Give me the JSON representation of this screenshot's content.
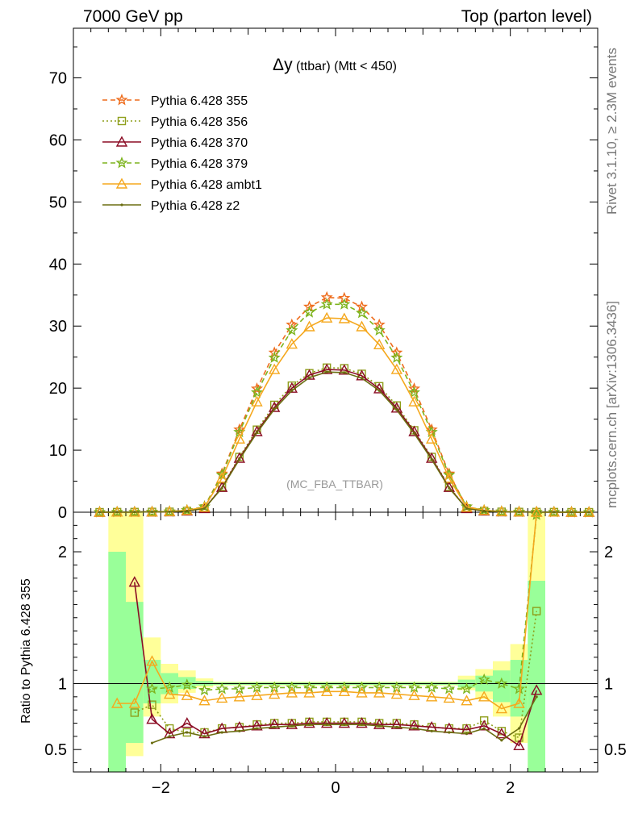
{
  "header": {
    "left": "7000 GeV pp",
    "right": "Top (parton level)"
  },
  "side": {
    "rivet": "Rivet 3.1.10, ≥ 2.3M events",
    "mcplots": "mcplots.cern.ch [arXiv:1306.3436]"
  },
  "chart_data": {
    "type": "line",
    "title_main": "Δy",
    "title_sub": " (ttbar) (Mtt < 450)",
    "watermark": "(MC_FBA_TTBAR)",
    "ylabel_ratio": "Ratio to Pythia 6.428 355",
    "xlim": [
      -3.0,
      3.0
    ],
    "ylim_main": [
      0,
      78
    ],
    "ylim_ratio": [
      0.33,
      2.3
    ],
    "x_ticks": [
      -2,
      0,
      2
    ],
    "y_ticks_main": [
      0,
      10,
      20,
      30,
      40,
      50,
      60,
      70
    ],
    "y_ticks_ratio": [
      0.5,
      1,
      2
    ],
    "x": [
      -2.7,
      -2.5,
      -2.3,
      -2.1,
      -1.9,
      -1.7,
      -1.5,
      -1.3,
      -1.1,
      -0.9,
      -0.7,
      -0.5,
      -0.3,
      -0.1,
      0.1,
      0.3,
      0.5,
      0.7,
      0.9,
      1.1,
      1.3,
      1.5,
      1.7,
      1.9,
      2.1,
      2.3,
      2.5,
      2.7,
      2.9
    ],
    "series": [
      {
        "name": "Pythia 6.428 355",
        "color": "#ee6c1c",
        "dash": "6,4",
        "marker": "star",
        "values": [
          0.0,
          0.02,
          0.03,
          0.05,
          0.1,
          0.3,
          0.9,
          6.2,
          13.3,
          19.9,
          25.7,
          30.2,
          33.1,
          34.6,
          34.5,
          33.1,
          30.2,
          25.7,
          19.9,
          13.3,
          6.2,
          0.9,
          0.3,
          0.1,
          0.05,
          0.03,
          0.02,
          0.0,
          0.0
        ],
        "ratio": [
          null,
          null,
          null,
          null,
          null,
          null,
          null,
          null,
          null,
          null,
          null,
          null,
          null,
          null,
          null,
          null,
          null,
          null,
          null,
          null,
          null,
          null,
          null,
          null,
          null,
          null,
          null,
          null,
          null
        ]
      },
      {
        "name": "Pythia 6.428 356",
        "color": "#8e9e1a",
        "dash": "2,3",
        "marker": "square",
        "values": [
          0.0,
          0.02,
          0.03,
          0.05,
          0.07,
          0.2,
          0.6,
          4.1,
          8.9,
          13.3,
          17.3,
          20.4,
          22.4,
          23.3,
          23.2,
          22.3,
          20.3,
          17.2,
          13.2,
          8.9,
          4.1,
          0.6,
          0.2,
          0.07,
          0.04,
          0.03,
          0.02,
          0.0,
          0.0
        ],
        "ratio": [
          null,
          null,
          0.78,
          0.84,
          0.66,
          0.63,
          0.63,
          0.66,
          0.67,
          0.69,
          0.7,
          0.7,
          0.71,
          0.71,
          0.71,
          0.71,
          0.7,
          0.7,
          0.69,
          0.67,
          0.66,
          0.66,
          0.72,
          0.64,
          0.59,
          1.55,
          null,
          null,
          null
        ]
      },
      {
        "name": "Pythia 6.428 370",
        "color": "#8b0c24",
        "dash": "",
        "marker": "triangle",
        "values": [
          0.0,
          0.02,
          0.03,
          0.05,
          0.07,
          0.2,
          0.6,
          4.0,
          8.7,
          13.0,
          16.9,
          20.0,
          22.1,
          23.0,
          22.9,
          22.0,
          19.9,
          16.8,
          13.0,
          8.7,
          4.0,
          0.6,
          0.2,
          0.07,
          0.04,
          0.03,
          0.02,
          0.0,
          0.0
        ],
        "ratio": [
          null,
          null,
          1.77,
          0.73,
          0.62,
          0.7,
          0.62,
          0.66,
          0.67,
          0.68,
          0.69,
          0.69,
          0.7,
          0.7,
          0.7,
          0.7,
          0.69,
          0.69,
          0.68,
          0.67,
          0.66,
          0.65,
          0.68,
          0.62,
          0.53,
          0.95,
          null,
          null,
          null
        ]
      },
      {
        "name": "Pythia 6.428 379",
        "color": "#7db41e",
        "dash": "6,4",
        "marker": "star",
        "values": [
          0.0,
          0.02,
          0.03,
          0.05,
          0.1,
          0.3,
          0.9,
          6.0,
          12.9,
          19.3,
          24.9,
          29.3,
          32.2,
          33.5,
          33.5,
          32.1,
          29.3,
          24.9,
          19.3,
          12.9,
          6.0,
          0.9,
          0.3,
          0.1,
          0.05,
          0.03,
          0.02,
          0.0,
          0.0
        ],
        "ratio": [
          null,
          null,
          null,
          0.96,
          0.97,
          0.99,
          0.95,
          0.96,
          0.96,
          0.97,
          0.97,
          0.97,
          0.97,
          0.97,
          0.97,
          0.97,
          0.97,
          0.97,
          0.97,
          0.97,
          0.96,
          0.96,
          1.03,
          1.0,
          0.96,
          2.28,
          null,
          null,
          null
        ]
      },
      {
        "name": "Pythia 6.428 ambt1",
        "color": "#f5a81e",
        "dash": "",
        "marker": "triangle",
        "values": [
          0.0,
          0.02,
          0.03,
          0.05,
          0.1,
          0.3,
          0.8,
          5.5,
          11.8,
          17.8,
          23.0,
          27.1,
          29.9,
          31.3,
          31.2,
          29.9,
          27.0,
          23.0,
          17.8,
          11.8,
          5.5,
          0.8,
          0.3,
          0.1,
          0.05,
          0.03,
          0.02,
          0.0,
          0.0
        ],
        "ratio": [
          null,
          0.85,
          0.85,
          1.17,
          0.92,
          0.91,
          0.87,
          0.89,
          0.9,
          0.91,
          0.92,
          0.93,
          0.93,
          0.94,
          0.94,
          0.93,
          0.93,
          0.92,
          0.91,
          0.9,
          0.89,
          0.87,
          0.9,
          0.81,
          0.85,
          2.3,
          null,
          null,
          null
        ]
      },
      {
        "name": "Pythia 6.428 z2",
        "color": "#6b6e12",
        "dash": "",
        "marker": "dot",
        "values": [
          0.0,
          0.02,
          0.03,
          0.05,
          0.07,
          0.2,
          0.6,
          3.9,
          8.5,
          12.8,
          16.6,
          19.6,
          21.7,
          22.6,
          22.5,
          21.6,
          19.6,
          16.5,
          12.7,
          8.5,
          3.9,
          0.6,
          0.2,
          0.07,
          0.04,
          0.03,
          0.02,
          0.0,
          0.0
        ],
        "ratio": [
          null,
          null,
          null,
          0.55,
          0.6,
          0.63,
          0.6,
          0.63,
          0.64,
          0.66,
          0.67,
          0.68,
          0.69,
          0.69,
          0.69,
          0.69,
          0.68,
          0.67,
          0.66,
          0.64,
          0.63,
          0.62,
          0.66,
          0.57,
          0.66,
          0.9,
          null,
          null,
          null
        ]
      }
    ],
    "bands": {
      "note_bins": "bin lower/upper edges",
      "lo": [
        -2.6,
        -2.4,
        -2.2,
        -2.0,
        -1.8,
        -1.6,
        -1.4,
        1.4,
        1.6,
        1.8,
        2.0,
        2.2
      ],
      "hi": [
        -2.4,
        -2.2,
        -2.0,
        -1.8,
        -1.6,
        -1.4,
        1.4,
        1.6,
        1.8,
        2.0,
        2.2,
        2.4
      ],
      "yellow_lo": [
        0.33,
        0.45,
        0.75,
        0.85,
        0.93,
        0.97,
        0.985,
        0.95,
        0.88,
        0.75,
        0.55,
        0.33
      ],
      "yellow_hi": [
        2.3,
        2.3,
        1.35,
        1.15,
        1.1,
        1.04,
        1.015,
        1.06,
        1.11,
        1.17,
        1.3,
        2.3
      ],
      "green_lo": [
        0.33,
        0.55,
        0.85,
        0.92,
        0.96,
        0.985,
        0.99,
        0.97,
        0.94,
        0.86,
        0.75,
        0.33
      ],
      "green_hi": [
        2.0,
        1.62,
        1.18,
        1.08,
        1.05,
        1.02,
        1.01,
        1.03,
        1.06,
        1.1,
        1.18,
        1.78
      ]
    }
  }
}
